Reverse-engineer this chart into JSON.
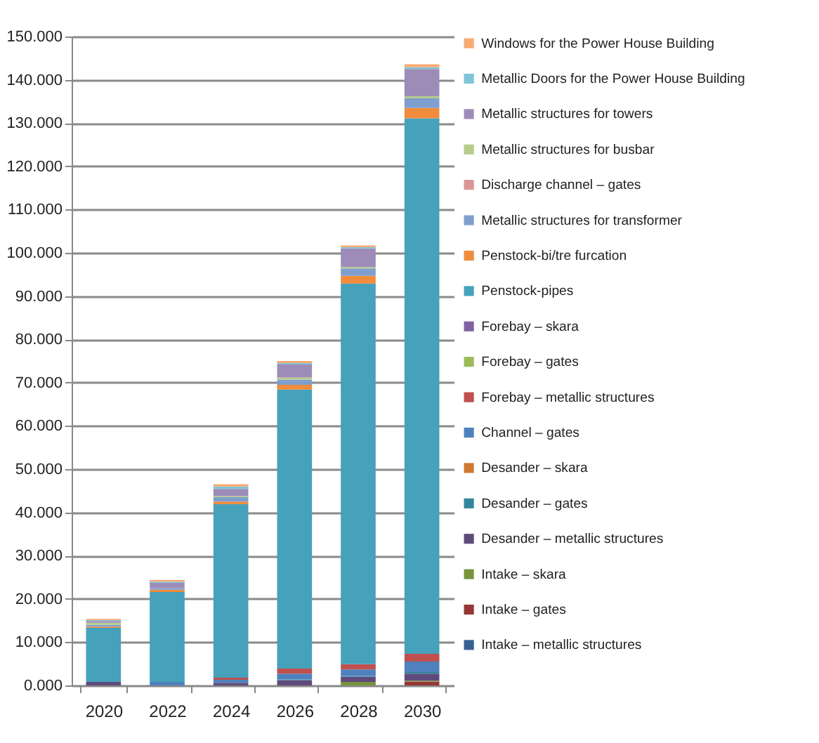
{
  "chart_data": {
    "type": "bar",
    "stacked": true,
    "categories": [
      "2020",
      "2022",
      "2024",
      "2026",
      "2028",
      "2030"
    ],
    "ylim": [
      0,
      150
    ],
    "yticks": [
      {
        "value": 0,
        "label": "0.000"
      },
      {
        "value": 10,
        "label": "10.000"
      },
      {
        "value": 20,
        "label": "20.000"
      },
      {
        "value": 30,
        "label": "30.000"
      },
      {
        "value": 40,
        "label": "40.000"
      },
      {
        "value": 50,
        "label": "50.000"
      },
      {
        "value": 60,
        "label": "60.000"
      },
      {
        "value": 70,
        "label": "70.000"
      },
      {
        "value": 80,
        "label": "80.000"
      },
      {
        "value": 90,
        "label": "90.000"
      },
      {
        "value": 100,
        "label": "100.000"
      },
      {
        "value": 110,
        "label": "110.000"
      },
      {
        "value": 120,
        "label": "120.000"
      },
      {
        "value": 130,
        "label": "130.000"
      },
      {
        "value": 140,
        "label": "140.000"
      },
      {
        "value": 150,
        "label": "150.000"
      }
    ],
    "grid": "y",
    "legend": "right",
    "series": [
      {
        "name": "Intake – metallic structures",
        "color": "#376092",
        "values": [
          0,
          0,
          0,
          0,
          0,
          0
        ]
      },
      {
        "name": "Intake – gates",
        "color": "#953735",
        "values": [
          0,
          0,
          0,
          0,
          0,
          0.9
        ]
      },
      {
        "name": "Intake – skara",
        "color": "#77933c",
        "values": [
          0,
          0,
          0,
          0,
          0.8,
          0.2
        ]
      },
      {
        "name": "Desander – metallic structures",
        "color": "#604a7b",
        "values": [
          0.8,
          0,
          0.6,
          1.2,
          1.2,
          1.6
        ]
      },
      {
        "name": "Desander – gates",
        "color": "#31859c",
        "values": [
          0,
          0,
          0,
          0.2,
          0.2,
          0.4
        ]
      },
      {
        "name": "Desander – skara",
        "color": "#d07a30",
        "values": [
          0,
          0,
          0,
          0,
          0,
          0
        ]
      },
      {
        "name": "Channel – gates",
        "color": "#4f81bd",
        "values": [
          0,
          0.8,
          0.7,
          1.3,
          1.5,
          2.4
        ]
      },
      {
        "name": "Forebay – metallic structures",
        "color": "#c0504d",
        "values": [
          0,
          0,
          0.5,
          1.2,
          1.2,
          1.8
        ]
      },
      {
        "name": "Forebay – gates",
        "color": "#9bbb59",
        "values": [
          0,
          0,
          0,
          0,
          0,
          0
        ]
      },
      {
        "name": "Forebay – skara",
        "color": "#8064a2",
        "values": [
          0,
          0,
          0,
          0,
          0,
          0
        ]
      },
      {
        "name": "Penstock-pipes",
        "color": "#46a1bb",
        "values": [
          12.5,
          20.8,
          40.1,
          64.5,
          88.0,
          123.8
        ]
      },
      {
        "name": "Penstock-bi/tre furcation",
        "color": "#f08c3c",
        "values": [
          0.3,
          0.5,
          0.6,
          1.1,
          1.8,
          2.4
        ]
      },
      {
        "name": "Metallic structures for transformer",
        "color": "#7f9fcf",
        "values": [
          0.4,
          0.4,
          1.0,
          1.2,
          1.7,
          2.2
        ]
      },
      {
        "name": "Discharge channel – gates",
        "color": "#d99694",
        "values": [
          0,
          0,
          0,
          0,
          0,
          0
        ]
      },
      {
        "name": "Metallic structures for busbar",
        "color": "#b5cc8a",
        "values": [
          0.5,
          0,
          0.3,
          0.5,
          0.3,
          0.5
        ]
      },
      {
        "name": "Metallic structures for towers",
        "color": "#9e8cb8",
        "values": [
          0.4,
          1.2,
          1.6,
          3.0,
          4.3,
          6.3
        ]
      },
      {
        "name": "Metallic Doors for the Power House Building",
        "color": "#7fc4d8",
        "values": [
          0.2,
          0.3,
          0.6,
          0.3,
          0.3,
          0.4
        ]
      },
      {
        "name": "Windows for the Power House Building",
        "color": "#f9aa74",
        "values": [
          0.3,
          0.4,
          0.5,
          0.5,
          0.4,
          0.7
        ]
      }
    ]
  }
}
